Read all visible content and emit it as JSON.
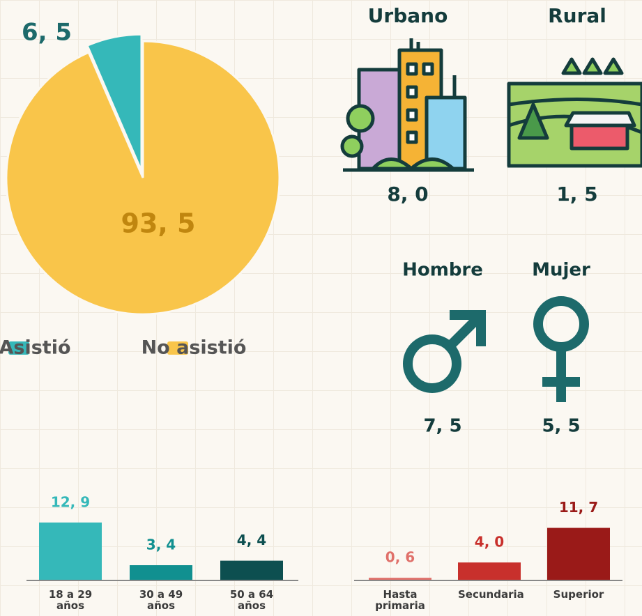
{
  "chart_data": [
    {
      "type": "pie",
      "categories": [
        "Asistió",
        "No asistió"
      ],
      "values": [
        6.5,
        93.5
      ],
      "value_labels": [
        "6, 5",
        "93, 5"
      ],
      "colors": [
        "#35b8b9",
        "#f9c54a"
      ],
      "label_colors": [
        "#1d6a6b",
        "#c0860f"
      ]
    },
    {
      "type": "pictogram",
      "categories": [
        "Urbano",
        "Rural"
      ],
      "values": [
        8.0,
        1.5
      ],
      "value_labels": [
        "8, 0",
        "1, 5"
      ]
    },
    {
      "type": "pictogram",
      "categories": [
        "Hombre",
        "Mujer"
      ],
      "values": [
        7.5,
        5.5
      ],
      "value_labels": [
        "7, 5",
        "5, 5"
      ]
    },
    {
      "type": "bar",
      "categories": [
        "18 a 29 años",
        "30 a 49 años",
        "50 a 64 años"
      ],
      "values": [
        12.9,
        3.4,
        4.4
      ],
      "value_labels": [
        "12, 9",
        "3, 4",
        "4, 4"
      ],
      "colors": [
        "#35b8b9",
        "#119090",
        "#0d4f50"
      ]
    },
    {
      "type": "bar",
      "categories": [
        "Hasta primaria",
        "Secundaria",
        "Superior"
      ],
      "values": [
        0.6,
        4.0,
        11.7
      ],
      "value_labels": [
        "0, 6",
        "4, 0",
        "11, 7"
      ],
      "colors": [
        "#e0706a",
        "#c8302c",
        "#9a1a18"
      ]
    }
  ]
}
